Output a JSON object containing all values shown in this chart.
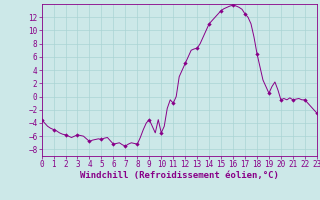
{
  "xlabel": "Windchill (Refroidissement éolien,°C)",
  "bg_color": "#cce8e8",
  "line_color": "#880088",
  "marker_color": "#880088",
  "ylim": [
    -9,
    14
  ],
  "xlim": [
    0,
    23
  ],
  "yticks": [
    -8,
    -6,
    -4,
    -2,
    0,
    2,
    4,
    6,
    8,
    10,
    12
  ],
  "xticks": [
    0,
    1,
    2,
    3,
    4,
    5,
    6,
    7,
    8,
    9,
    10,
    11,
    12,
    13,
    14,
    15,
    16,
    17,
    18,
    19,
    20,
    21,
    22,
    23
  ],
  "hours": [
    0,
    0.25,
    0.5,
    0.75,
    1,
    1.25,
    1.5,
    1.75,
    2,
    2.25,
    2.5,
    2.75,
    3,
    3.25,
    3.5,
    3.75,
    4,
    4.25,
    4.5,
    4.75,
    5,
    5.25,
    5.5,
    5.75,
    6,
    6.25,
    6.5,
    6.75,
    7,
    7.25,
    7.5,
    7.75,
    8,
    8.25,
    8.5,
    8.75,
    9,
    9.25,
    9.5,
    9.75,
    10,
    10.25,
    10.5,
    10.75,
    11,
    11.25,
    11.5,
    11.75,
    12,
    12.25,
    12.5,
    12.75,
    13,
    13.25,
    13.5,
    13.75,
    14,
    14.25,
    14.5,
    14.75,
    15,
    15.25,
    15.5,
    15.75,
    16,
    16.25,
    16.5,
    16.75,
    17,
    17.25,
    17.5,
    17.75,
    18,
    18.25,
    18.5,
    18.75,
    19,
    19.25,
    19.5,
    19.75,
    20,
    20.25,
    20.5,
    20.75,
    21,
    21.25,
    21.5,
    21.75,
    22,
    22.25,
    22.5,
    22.75,
    23
  ],
  "values": [
    -3.5,
    -4.0,
    -4.5,
    -4.8,
    -5.0,
    -5.2,
    -5.5,
    -5.7,
    -5.8,
    -6.0,
    -6.2,
    -6.0,
    -5.8,
    -5.9,
    -6.0,
    -6.4,
    -6.8,
    -6.6,
    -6.5,
    -6.4,
    -6.5,
    -6.3,
    -6.2,
    -6.7,
    -7.2,
    -7.1,
    -7.0,
    -7.3,
    -7.5,
    -7.2,
    -7.0,
    -7.1,
    -7.2,
    -6.2,
    -5.0,
    -4.0,
    -3.5,
    -4.5,
    -5.5,
    -3.5,
    -5.5,
    -4.5,
    -1.8,
    -0.5,
    -1.0,
    0.0,
    3.0,
    4.0,
    5.0,
    6.0,
    7.0,
    7.2,
    7.3,
    8.0,
    9.0,
    10.0,
    11.0,
    11.5,
    12.0,
    12.5,
    13.0,
    13.3,
    13.5,
    13.7,
    13.8,
    13.7,
    13.5,
    13.2,
    12.5,
    12.0,
    11.0,
    9.0,
    6.5,
    4.5,
    2.5,
    1.5,
    0.5,
    1.5,
    2.2,
    1.0,
    -0.5,
    -0.3,
    -0.5,
    -0.2,
    -0.5,
    -0.4,
    -0.3,
    -0.5,
    -0.5,
    -1.0,
    -1.5,
    -2.0,
    -2.5
  ],
  "marker_hours": [
    0,
    1,
    2,
    3,
    4,
    5,
    6,
    7,
    8,
    9,
    10,
    11,
    12,
    13,
    14,
    15,
    16,
    17,
    18,
    19,
    20,
    21,
    22,
    23
  ],
  "marker_values": [
    -3.5,
    -5.0,
    -5.8,
    -5.8,
    -6.8,
    -6.5,
    -7.2,
    -7.5,
    -7.2,
    -3.5,
    -5.5,
    -1.0,
    5.0,
    7.3,
    11.0,
    13.0,
    13.8,
    12.5,
    6.5,
    0.5,
    -0.5,
    -0.5,
    -0.5,
    -2.5
  ],
  "grid_color": "#aad4d4",
  "xlabel_fontsize": 6.5,
  "tick_fontsize": 5.5
}
